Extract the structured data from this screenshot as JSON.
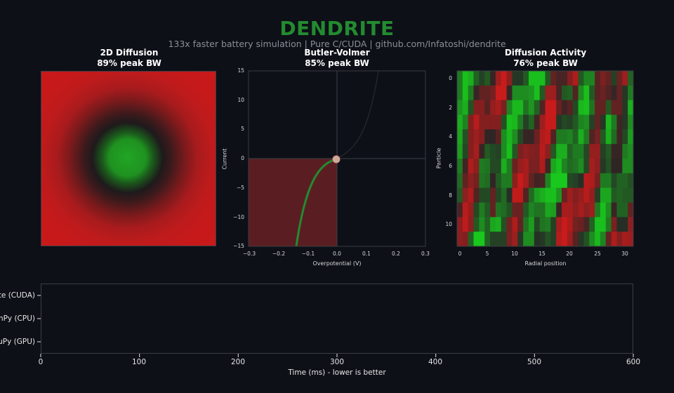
{
  "header": {
    "title": "DENDRITE",
    "subtitle": "133x faster battery simulation  |  Pure C/CUDA  |  github.com/Infatoshi/dendrite"
  },
  "colors": {
    "background": "#0d1017",
    "accent_green": "#238b30",
    "red": "#c8191a",
    "bright_green": "#16cc1c",
    "fill_red": "#5a1e22",
    "marker": "#c9ab9a",
    "spine": "#3a3d44"
  },
  "panels": {
    "diffusion": {
      "title_line1": "2D Diffusion",
      "title_line2": "89% peak BW"
    },
    "butler": {
      "title_line1": "Butler-Volmer",
      "title_line2": "85% peak BW"
    },
    "activity": {
      "title_line1": "Diffusion Activity",
      "title_line2": "76% peak BW"
    }
  },
  "chart_data": [
    {
      "type": "heatmap",
      "title": "2D Diffusion\n89% peak BW",
      "description": "Radial Gaussian concentration field: green center, dark ring, red surroundings",
      "center": [
        0.5,
        0.5
      ],
      "xlabel": "",
      "ylabel": "",
      "axes_visible": false
    },
    {
      "type": "line",
      "title": "Butler-Volmer\n85% peak BW",
      "xlabel": "Overpotential (V)",
      "ylabel": "Current",
      "xlim": [
        -0.3,
        0.3
      ],
      "ylim": [
        -15,
        15
      ],
      "xticks": [
        "−0.3",
        "−0.2",
        "−0.1",
        "0.0",
        "0.1",
        "0.2",
        "0.3"
      ],
      "yticks": [
        "15",
        "10",
        "5",
        "0",
        "−5",
        "−10",
        "−15"
      ],
      "series": [
        {
          "name": "cathodic (highlighted)",
          "color": "#238b30",
          "x": [
            -0.14,
            -0.13,
            -0.12,
            -0.1,
            -0.08,
            -0.06,
            -0.04,
            -0.02,
            0.0
          ],
          "y": [
            -15,
            -12.5,
            -10.3,
            -7.0,
            -4.8,
            -3.0,
            -1.7,
            -0.7,
            0
          ]
        },
        {
          "name": "anodic (faint)",
          "color": "#2a2e36",
          "x": [
            0.0,
            0.03,
            0.06,
            0.09,
            0.11,
            0.13,
            0.14
          ],
          "y": [
            0,
            0.9,
            2.6,
            5.6,
            8.6,
            12.6,
            15
          ]
        }
      ],
      "fill": {
        "region": "x from -0.3 to 0, y from -15 to 0",
        "color": "#5a1e22"
      },
      "marker": {
        "x": 0.0,
        "y": 0.0
      },
      "gridlines": [
        "x=0",
        "y=0"
      ]
    },
    {
      "type": "heatmap",
      "title": "Diffusion Activity\n76% peak BW",
      "xlabel": "Radial position",
      "ylabel": "Particle",
      "xticks": [
        "0",
        "5",
        "10",
        "15",
        "20",
        "25",
        "30"
      ],
      "yticks": [
        "0",
        "2",
        "4",
        "6",
        "8",
        "10"
      ],
      "rows": 12,
      "cols": 32,
      "scale": "value in [-1,1]: negative=red, positive=green, 0=dark",
      "values": [
        [
          0.5,
          0.9,
          0.8,
          0.35,
          0.15,
          0.3,
          -0.1,
          -0.7,
          -0.95,
          -0.6,
          0.1,
          0.1,
          0.3,
          0.9,
          0.9,
          0.9,
          0.3,
          -0.35,
          -0.2,
          -0.2,
          -0.55,
          -0.8,
          0.3,
          0.55,
          0.55,
          -0.3,
          -0.5,
          -0.35,
          0.15,
          -0.4,
          -0.7,
          0.35
        ],
        [
          0.5,
          0.9,
          0.5,
          -0.1,
          -0.35,
          -0.35,
          -0.45,
          -0.95,
          -0.95,
          -0.1,
          0.6,
          0.6,
          0.6,
          0.65,
          0.9,
          0.3,
          -0.7,
          -0.7,
          -0.2,
          0.3,
          0.35,
          -0.25,
          0.6,
          0.9,
          0.3,
          -0.3,
          -0.4,
          -0.25,
          -0.1,
          -0.35,
          0.1,
          0.5
        ],
        [
          0.65,
          0.8,
          0.25,
          -0.55,
          -0.55,
          -0.3,
          -0.65,
          -0.75,
          -0.5,
          0.55,
          0.85,
          0.85,
          0.45,
          0.65,
          0.35,
          -0.25,
          -0.95,
          -0.95,
          -0.4,
          -0.15,
          -0.3,
          0.2,
          0.85,
          0.9,
          0.45,
          -0.35,
          -0.35,
          0.3,
          -0.35,
          -0.35,
          0.1,
          0.8
        ],
        [
          0.8,
          0.55,
          -0.55,
          -0.85,
          -0.55,
          -0.55,
          -0.55,
          -0.55,
          0.25,
          0.9,
          0.85,
          0.5,
          0.15,
          0.35,
          -0.15,
          -0.7,
          -0.95,
          -0.95,
          0.1,
          0.2,
          0.15,
          0.3,
          0.55,
          0.6,
          0.15,
          -0.35,
          0.1,
          0.85,
          0.5,
          -0.15,
          0.1,
          0.6
        ],
        [
          0.75,
          0.25,
          -0.55,
          -0.7,
          -0.55,
          -0.05,
          -0.05,
          -0.3,
          0.6,
          0.85,
          0.6,
          0.2,
          -0.1,
          -0.1,
          -0.4,
          -0.8,
          -0.9,
          -0.25,
          0.5,
          0.5,
          0.55,
          0.35,
          0.8,
          0.5,
          -0.25,
          -0.45,
          0.3,
          0.8,
          0.4,
          -0.15,
          0.2,
          0.7
        ],
        [
          0.7,
          0.2,
          -0.55,
          -0.75,
          -0.1,
          0.3,
          0.2,
          0.15,
          0.6,
          0.9,
          0.3,
          -0.5,
          -0.6,
          -0.55,
          -0.5,
          -0.85,
          -0.6,
          0.3,
          0.8,
          0.8,
          0.35,
          0.5,
          0.5,
          0.2,
          -0.65,
          -0.65,
          0.15,
          0.3,
          -0.1,
          -0.1,
          0.5,
          0.6
        ],
        [
          0.5,
          -0.15,
          -0.8,
          -0.6,
          0.5,
          0.45,
          0.2,
          0.2,
          0.8,
          0.5,
          -0.4,
          -0.65,
          -0.75,
          -0.5,
          -0.5,
          -0.8,
          -0.15,
          0.75,
          0.9,
          0.55,
          0.4,
          0.45,
          0.6,
          0.2,
          -0.75,
          -0.6,
          0.1,
          0.25,
          -0.05,
          -0.05,
          0.6,
          0.6
        ],
        [
          0.4,
          -0.35,
          -0.6,
          -0.45,
          0.45,
          0.4,
          -0.05,
          0.3,
          0.5,
          0.5,
          -0.6,
          -0.95,
          -0.75,
          -0.35,
          -0.15,
          -0.2,
          0.55,
          0.95,
          0.95,
          0.95,
          0.2,
          0.15,
          0.05,
          -0.85,
          -0.8,
          -0.45,
          0.5,
          0.5,
          0.2,
          0.35,
          0.35,
          0.25
        ],
        [
          0.3,
          -0.6,
          -0.8,
          -0.25,
          0.2,
          0.2,
          -0.35,
          0.2,
          0.4,
          0.05,
          -0.9,
          -0.9,
          -0.25,
          0.4,
          0.7,
          0.8,
          0.9,
          0.9,
          0.65,
          -0.4,
          -0.7,
          -0.55,
          -0.65,
          -0.85,
          -0.65,
          0.15,
          0.75,
          0.75,
          0.3,
          0.35,
          0.3,
          0.3
        ],
        [
          -0.2,
          -0.85,
          -0.65,
          0.2,
          0.5,
          0.3,
          -0.35,
          0.45,
          0.4,
          0.25,
          -0.4,
          -0.4,
          0.3,
          0.55,
          0.45,
          0.45,
          0.75,
          0.7,
          -0.1,
          -0.75,
          -0.75,
          -0.6,
          -0.75,
          -0.6,
          -0.7,
          0.5,
          0.9,
          0.6,
          -0.1,
          0.35,
          0.35,
          -0.35
        ],
        [
          -0.6,
          -0.9,
          -0.6,
          0.3,
          0.6,
          0.35,
          0.75,
          0.8,
          0.25,
          -0.45,
          -0.8,
          -0.35,
          0.45,
          0.7,
          0.2,
          0.45,
          0.5,
          0.15,
          -0.75,
          -0.95,
          -0.8,
          -0.45,
          -0.4,
          -0.2,
          0.35,
          0.9,
          0.9,
          0.5,
          -0.5,
          0.05,
          0.05,
          -0.6
        ],
        [
          -0.6,
          -0.55,
          0.35,
          0.95,
          0.95,
          0.35,
          0.15,
          0.15,
          0.15,
          -0.5,
          -0.7,
          0.1,
          0.6,
          0.6,
          0.05,
          0.1,
          0.25,
          0.15,
          -0.85,
          -0.95,
          -0.7,
          -0.3,
          0.1,
          0.25,
          0.6,
          0.85,
          0.55,
          -0.35,
          -0.8,
          -0.55,
          -0.75,
          -0.7
        ]
      ]
    },
    {
      "type": "bar",
      "orientation": "horizontal",
      "title": "",
      "categories": [
        "Dendrite (CUDA)",
        "NumPy (CPU)",
        "CuPy (GPU)"
      ],
      "visible_category_labels": [
        "te (CUDA)",
        "mPy (CPU)",
        "uPy (GPU)"
      ],
      "values": [
        null,
        null,
        null
      ],
      "xlabel": "Time (ms) - lower is better",
      "ylabel": "",
      "xlim": [
        0,
        600
      ],
      "xticks": [
        "0",
        "100",
        "200",
        "300",
        "400",
        "500",
        "600"
      ],
      "note": "No bars rendered"
    }
  ]
}
